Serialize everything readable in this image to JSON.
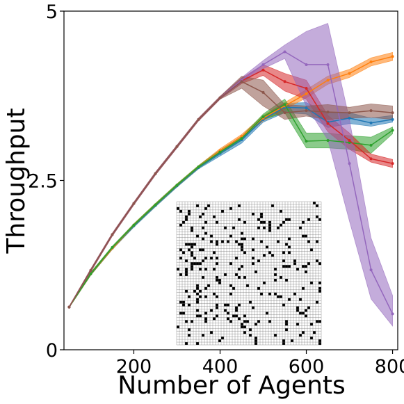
{
  "chart_data": {
    "type": "line",
    "title": "",
    "xlabel": "Number of Agents",
    "ylabel": "Throughput",
    "xlim": [
      38,
      812
    ],
    "ylim": [
      0,
      5
    ],
    "x_ticks": [
      200,
      400,
      600,
      800
    ],
    "y_ticks": [
      0,
      2.5,
      5
    ],
    "x_tick_labels": [
      "200",
      "400",
      "600",
      "800"
    ],
    "y_tick_labels": [
      "0",
      "2.5",
      "5"
    ],
    "grid": false,
    "legend": "none",
    "x": [
      50,
      100,
      150,
      200,
      250,
      300,
      350,
      400,
      450,
      500,
      550,
      600,
      650,
      700,
      750,
      800
    ],
    "series": [
      {
        "color": "#1f77b4",
        "values": [
          0.63,
          1.12,
          1.5,
          1.83,
          2.13,
          2.42,
          2.69,
          2.9,
          3.1,
          3.4,
          3.58,
          3.57,
          3.36,
          3.42,
          3.35,
          3.4
        ],
        "lower": [
          0.62,
          1.1,
          1.48,
          1.81,
          2.11,
          2.4,
          2.67,
          2.86,
          3.05,
          3.36,
          3.5,
          3.48,
          3.28,
          3.34,
          3.3,
          3.36
        ],
        "upper": [
          0.64,
          1.14,
          1.52,
          1.85,
          2.15,
          2.44,
          2.71,
          2.94,
          3.15,
          3.44,
          3.64,
          3.65,
          3.5,
          3.5,
          3.42,
          3.46
        ]
      },
      {
        "color": "#ff7f0e",
        "values": [
          0.63,
          1.12,
          1.5,
          1.84,
          2.14,
          2.43,
          2.7,
          2.94,
          3.15,
          3.42,
          3.6,
          3.78,
          3.98,
          4.08,
          4.25,
          4.33
        ],
        "lower": [
          0.62,
          1.1,
          1.48,
          1.82,
          2.12,
          2.41,
          2.68,
          2.91,
          3.12,
          3.38,
          3.55,
          3.72,
          3.92,
          4.02,
          4.19,
          4.27
        ],
        "upper": [
          0.64,
          1.14,
          1.52,
          1.86,
          2.16,
          2.45,
          2.72,
          2.97,
          3.18,
          3.46,
          3.65,
          3.84,
          4.04,
          4.14,
          4.31,
          4.39
        ]
      },
      {
        "color": "#2ca02c",
        "values": [
          0.63,
          1.12,
          1.51,
          1.84,
          2.14,
          2.43,
          2.7,
          2.92,
          3.12,
          3.44,
          3.62,
          3.08,
          3.09,
          3.06,
          3.02,
          3.24
        ],
        "lower": [
          0.62,
          1.1,
          1.49,
          1.82,
          2.12,
          2.41,
          2.68,
          2.89,
          3.09,
          3.4,
          3.5,
          2.98,
          2.98,
          2.96,
          2.9,
          3.19
        ],
        "upper": [
          0.64,
          1.14,
          1.53,
          1.86,
          2.16,
          2.45,
          2.72,
          2.95,
          3.15,
          3.48,
          3.7,
          3.2,
          3.2,
          3.16,
          3.14,
          3.29
        ]
      },
      {
        "color": "#d62728",
        "values": [
          0.63,
          1.17,
          1.7,
          2.16,
          2.6,
          3.0,
          3.4,
          3.72,
          3.97,
          4.13,
          3.96,
          3.86,
          3.34,
          3.09,
          2.82,
          2.75
        ],
        "lower": [
          0.62,
          1.15,
          1.68,
          2.14,
          2.58,
          2.98,
          3.38,
          3.7,
          3.93,
          4.05,
          3.82,
          3.7,
          3.22,
          2.96,
          2.77,
          2.69
        ],
        "upper": [
          0.64,
          1.19,
          1.72,
          2.18,
          2.62,
          3.02,
          3.42,
          3.74,
          4.01,
          4.21,
          4.08,
          3.98,
          3.46,
          3.2,
          2.89,
          2.81
        ]
      },
      {
        "color": "#9467bd",
        "values": [
          0.63,
          1.17,
          1.7,
          2.16,
          2.6,
          3.0,
          3.4,
          3.72,
          3.98,
          4.21,
          4.4,
          4.21,
          4.21,
          2.75,
          1.18,
          0.53
        ],
        "lower": [
          0.62,
          1.15,
          1.68,
          2.14,
          2.58,
          2.98,
          3.38,
          3.7,
          3.94,
          4.15,
          4.3,
          3.6,
          3.1,
          1.9,
          0.75,
          0.35
        ],
        "upper": [
          0.64,
          1.19,
          1.72,
          2.18,
          2.62,
          3.02,
          3.42,
          3.74,
          4.02,
          4.27,
          4.5,
          4.7,
          4.82,
          3.4,
          1.65,
          0.8
        ]
      },
      {
        "color": "#8c564b",
        "values": [
          0.63,
          1.17,
          1.7,
          2.16,
          2.6,
          3.0,
          3.4,
          3.72,
          3.96,
          3.8,
          3.5,
          3.53,
          3.51,
          3.5,
          3.53,
          3.5
        ],
        "lower": [
          0.62,
          1.15,
          1.68,
          2.14,
          2.58,
          2.98,
          3.38,
          3.7,
          3.86,
          3.6,
          3.4,
          3.45,
          3.4,
          3.42,
          3.43,
          3.4
        ],
        "upper": [
          0.64,
          1.19,
          1.72,
          2.18,
          2.62,
          3.02,
          3.42,
          3.74,
          4.04,
          3.98,
          3.62,
          3.6,
          3.62,
          3.58,
          3.63,
          3.6
        ]
      }
    ],
    "inset": {
      "type": "grid_map",
      "description_colors": {
        "free": "#ffffff",
        "obstacle": "#000000",
        "grid_line": "#555555"
      }
    }
  }
}
